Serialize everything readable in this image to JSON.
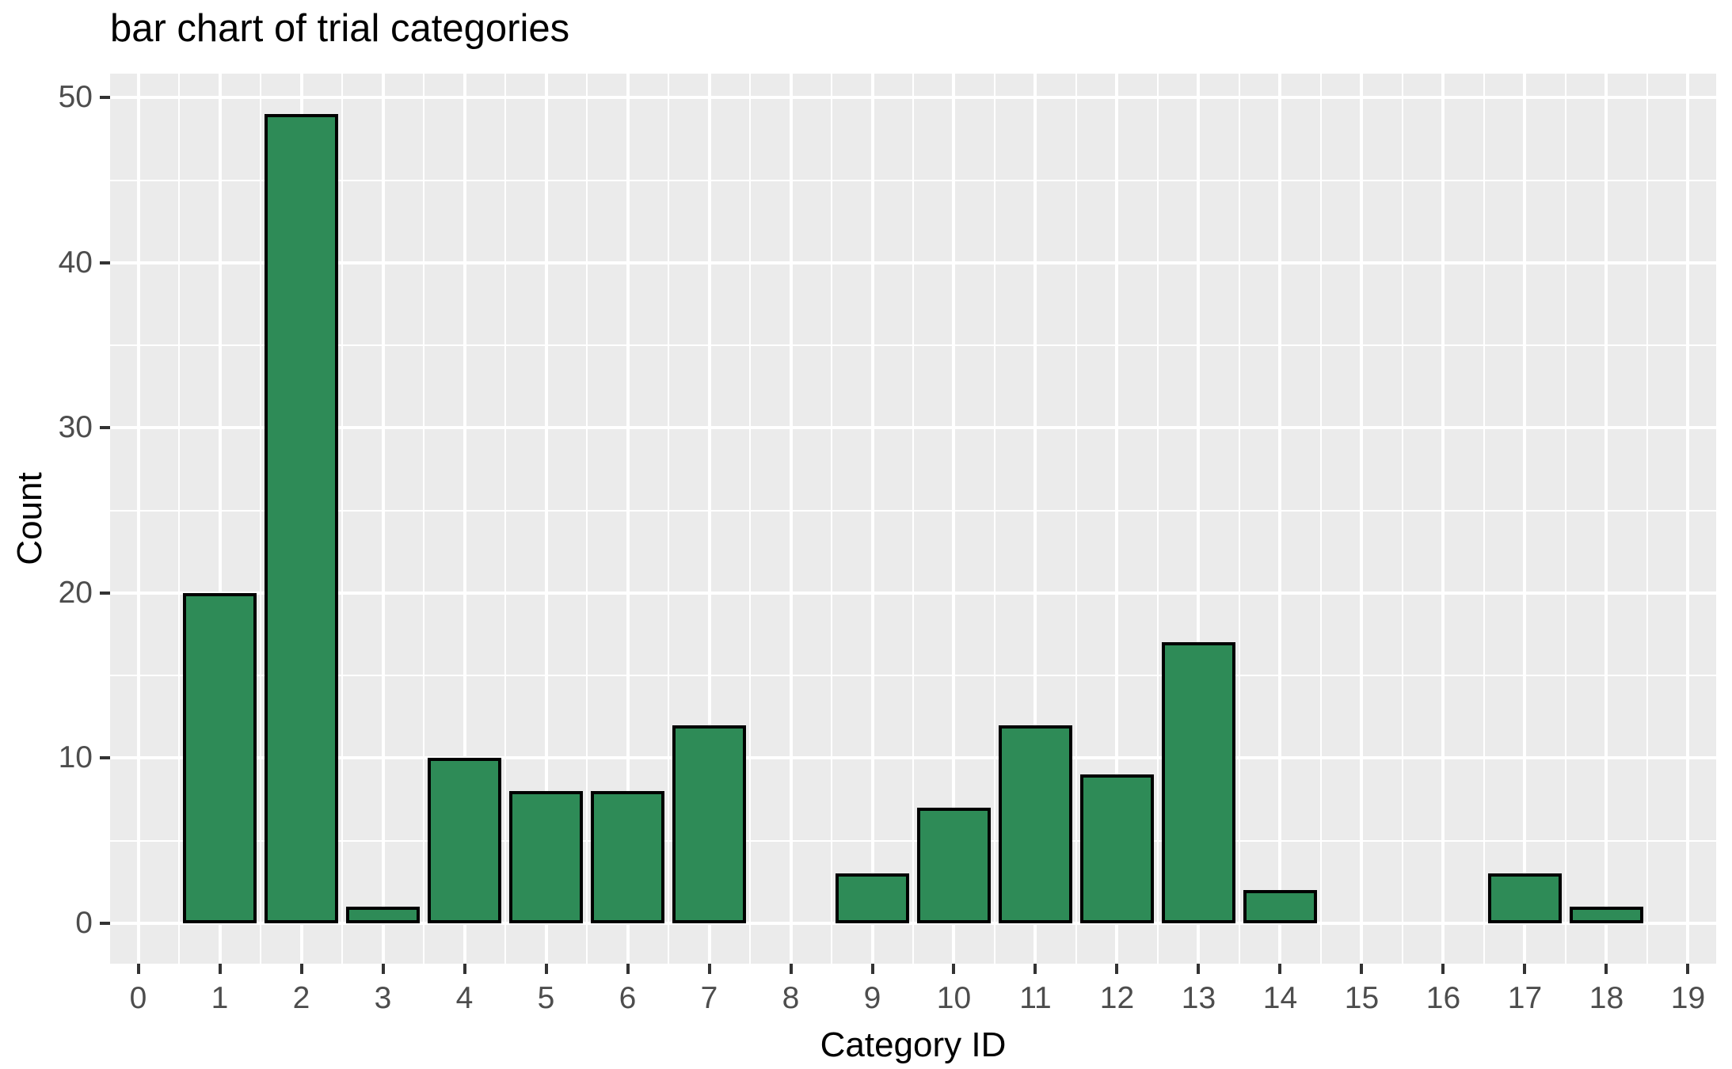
{
  "chart_data": {
    "type": "bar",
    "title": "bar chart of trial categories",
    "xlabel": "Category ID",
    "ylabel": "Count",
    "categories": [
      0,
      1,
      2,
      3,
      4,
      5,
      6,
      7,
      8,
      9,
      10,
      11,
      12,
      13,
      14,
      15,
      16,
      17,
      18,
      19
    ],
    "values": [
      0,
      20,
      49,
      1,
      10,
      8,
      8,
      12,
      0,
      3,
      7,
      12,
      9,
      17,
      2,
      0,
      0,
      3,
      1,
      0
    ],
    "x_ticks": [
      0,
      1,
      2,
      3,
      4,
      5,
      6,
      7,
      8,
      9,
      10,
      11,
      12,
      13,
      14,
      15,
      16,
      17,
      18,
      19
    ],
    "y_ticks": [
      0,
      10,
      20,
      30,
      40,
      50
    ],
    "y_minor_ticks": [
      5,
      15,
      25,
      35,
      45
    ],
    "xlim": [
      -0.345,
      19.345
    ],
    "ylim": [
      -2.45,
      51.45
    ],
    "bar_width": 0.9,
    "grid": "on",
    "legend": "none",
    "colors": {
      "bar_fill": "#2E8B57",
      "bar_stroke": "#000000",
      "panel_background": "#EBEBEB",
      "gridline": "#FFFFFF",
      "tick_label": "#4D4D4D",
      "axis_title": "#000000",
      "title": "#000000"
    }
  }
}
